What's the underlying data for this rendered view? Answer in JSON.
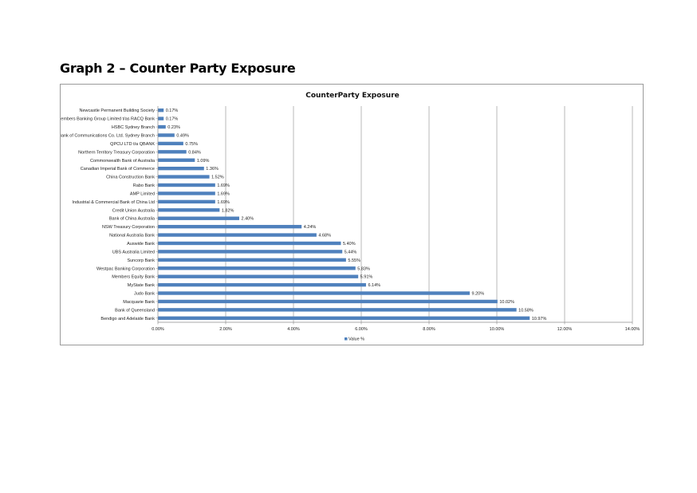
{
  "page": {
    "heading": "Graph 2 – Counter Party Exposure"
  },
  "chart_data": {
    "type": "bar",
    "orientation": "horizontal",
    "title": "CounterParty Exposure",
    "xlim": [
      0,
      14
    ],
    "x_ticks": [
      "0.00%",
      "2.00%",
      "4.00%",
      "6.00%",
      "8.00%",
      "10.00%",
      "12.00%",
      "14.00%"
    ],
    "x_tick_values": [
      0,
      2,
      4,
      6,
      8,
      10,
      12,
      14
    ],
    "grid": "vertical",
    "legend_position": "bottom",
    "bar_color": "#4F81BD",
    "categories": [
      "Newcastle Permanent Building Society",
      "Members Banking Group Limited t/as RACQ Bank",
      "HSBC Sydney Branch",
      "Bank of Communications Co. Ltd. Sydney Branch",
      "QPCU LTD t/a QBANK",
      "Northern Territory Treasury Corporation",
      "Commonwealth Bank of Australia",
      "Canadian Imperial Bank of Commerce",
      "China Construction Bank",
      "Rabo Bank",
      "AMP Limited",
      "Industrial & Commercial Bank of China Ltd",
      "Credit Union Australia",
      "Bank of China Australia",
      "NSW Treasury Corporation",
      "National Australia Bank",
      "Auswide Bank",
      "UBS Australia Limited",
      "Suncorp Bank",
      "Westpac Banking Corporation",
      "Members Equity Bank",
      "MyState Bank",
      "Judo Bank",
      "Macquarie Bank",
      "Bank of Queensland",
      "Bendigo and Adelaide Bank"
    ],
    "series": [
      {
        "name": "Value %",
        "values": [
          0.17,
          0.17,
          0.23,
          0.49,
          0.75,
          0.84,
          1.09,
          1.36,
          1.52,
          1.69,
          1.69,
          1.69,
          1.82,
          2.4,
          4.24,
          4.68,
          5.4,
          5.44,
          5.55,
          5.83,
          5.91,
          6.14,
          9.2,
          10.02,
          10.58,
          10.97
        ],
        "labels": [
          "0.17%",
          "0.17%",
          "0.23%",
          "0.49%",
          "0.75%",
          "0.84%",
          "1.09%",
          "1.36%",
          "1.52%",
          "1.69%",
          "1.69%",
          "1.69%",
          "1.82%",
          "2.40%",
          "4.24%",
          "4.68%",
          "5.40%",
          "5.44%",
          "5.55%",
          "5.83%",
          "5.91%",
          "6.14%",
          "9.20%",
          "10.02%",
          "10.58%",
          "10.97%"
        ]
      }
    ]
  }
}
